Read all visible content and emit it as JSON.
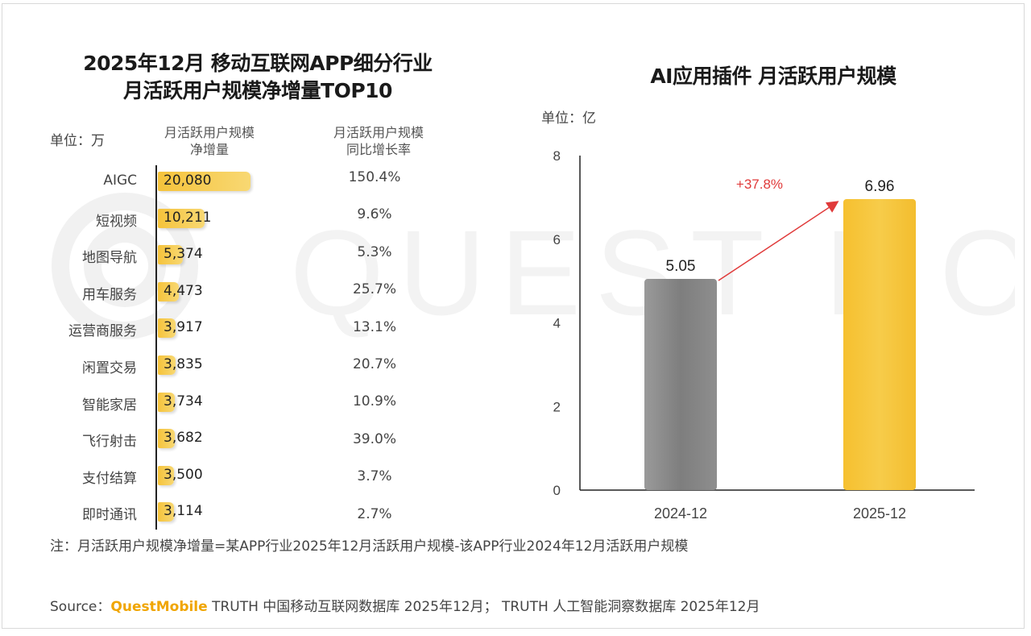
{
  "left_chart": {
    "title_line1": "2025年12月 移动互联网APP细分行业",
    "title_line2": "月活跃用户规模净增量TOP10",
    "unit": "单位：万",
    "col_bar_line1": "月活跃用户规模",
    "col_bar_line2": "净增量",
    "col_rate_line1": "月活跃用户规模",
    "col_rate_line2": "同比增长率",
    "rows": [
      {
        "category": "AIGC",
        "value_label": "20,080",
        "rate": "150.4%"
      },
      {
        "category": "短视频",
        "value_label": "10,211",
        "rate": "9.6%"
      },
      {
        "category": "地图导航",
        "value_label": "5,374",
        "rate": "5.3%"
      },
      {
        "category": "用车服务",
        "value_label": "4,473",
        "rate": "25.7%"
      },
      {
        "category": "运营商服务",
        "value_label": "3,917",
        "rate": "13.1%"
      },
      {
        "category": "闲置交易",
        "value_label": "3,835",
        "rate": "20.7%"
      },
      {
        "category": "智能家居",
        "value_label": "3,734",
        "rate": "10.9%"
      },
      {
        "category": "飞行射击",
        "value_label": "3,682",
        "rate": "39.0%"
      },
      {
        "category": "支付结算",
        "value_label": "3,500",
        "rate": "3.7%"
      },
      {
        "category": "即时通讯",
        "value_label": "3,114",
        "rate": "2.7%"
      }
    ]
  },
  "chart_data": [
    {
      "type": "bar",
      "orientation": "horizontal",
      "title": "2025年12月 移动互联网APP细分行业 月活跃用户规模净增量TOP10",
      "unit": "单位：万",
      "categories": [
        "AIGC",
        "短视频",
        "地图导航",
        "用车服务",
        "运营商服务",
        "闲置交易",
        "智能家居",
        "飞行射击",
        "支付结算",
        "即时通讯"
      ],
      "series": [
        {
          "name": "月活跃用户规模净增量",
          "values": [
            20080,
            10211,
            5374,
            4473,
            3917,
            3835,
            3734,
            3682,
            3500,
            3114
          ]
        },
        {
          "name": "月活跃用户规模同比增长率",
          "values": [
            150.4,
            9.6,
            5.3,
            25.7,
            13.1,
            20.7,
            10.9,
            39.0,
            3.7,
            2.7
          ]
        }
      ]
    },
    {
      "type": "bar",
      "title": "AI应用插件 月活跃用户规模",
      "unit": "单位：亿",
      "categories": [
        "2024-12",
        "2025-12"
      ],
      "values": [
        5.05,
        6.96
      ],
      "value_labels": [
        "5.05",
        "6.96"
      ],
      "ylim": [
        0,
        8
      ],
      "yticks": [
        0,
        2,
        4,
        6,
        8
      ],
      "growth_annotation": "+37.8%",
      "colors": [
        "#8a8a8a",
        "#f5c33b"
      ],
      "grid": false
    }
  ],
  "footer": {
    "note": "注：月活跃用户规模净增量=某APP行业2025年12月活跃用户规模-该APP行业2024年12月活跃用户规模",
    "source_prefix": "Source：",
    "source_brand": "QuestMobile",
    "source_text": " TRUTH 中国移动互联网数据库 2025年12月； TRUTH 人工智能洞察数据库 2025年12月"
  },
  "watermark_text": "QUEST MOBILE",
  "colors": {
    "accent": "#f5c33b",
    "gray_bar": "#8a8a8a",
    "annotation": "#e03a3a"
  }
}
